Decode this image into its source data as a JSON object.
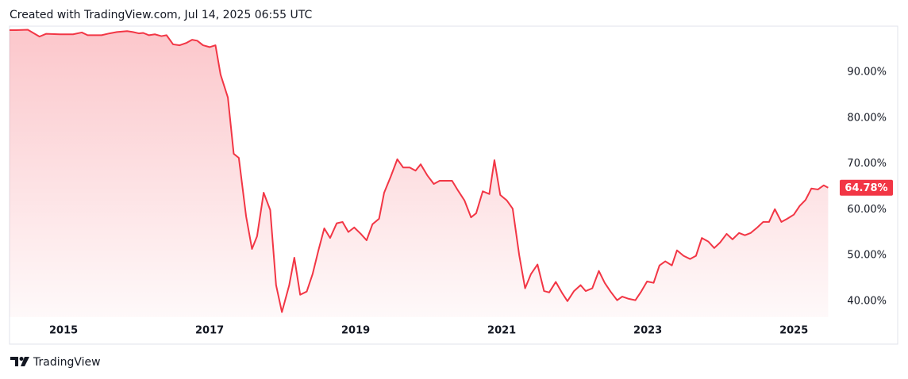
{
  "header": "Created with TradingView.com, Jul 14, 2025 06:55 UTC",
  "footer": "TradingView",
  "chart_data": {
    "type": "area",
    "x": [
      2014.26,
      2014.35,
      2014.51,
      2014.67,
      2014.76,
      2014.95,
      2015.13,
      2015.25,
      2015.33,
      2015.52,
      2015.63,
      2015.73,
      2015.87,
      2015.95,
      2016.03,
      2016.09,
      2016.17,
      2016.25,
      2016.34,
      2016.41,
      2016.5,
      2016.59,
      2016.68,
      2016.76,
      2016.83,
      2016.91,
      2017.0,
      2017.08,
      2017.15,
      2017.25,
      2017.33,
      2017.4,
      2017.5,
      2017.58,
      2017.65,
      2017.74,
      2017.83,
      2017.91,
      2017.99,
      2018.09,
      2018.16,
      2018.24,
      2018.33,
      2018.41,
      2018.49,
      2018.57,
      2018.65,
      2018.74,
      2018.82,
      2018.9,
      2018.98,
      2019.07,
      2019.15,
      2019.23,
      2019.32,
      2019.39,
      2019.48,
      2019.57,
      2019.65,
      2019.74,
      2019.82,
      2019.89,
      2019.98,
      2020.07,
      2020.15,
      2020.24,
      2020.32,
      2020.4,
      2020.49,
      2020.58,
      2020.65,
      2020.74,
      2020.83,
      2020.9,
      2020.98,
      2021.07,
      2021.15,
      2021.24,
      2021.32,
      2021.4,
      2021.49,
      2021.58,
      2021.65,
      2021.74,
      2021.83,
      2021.9,
      2021.99,
      2022.08,
      2022.15,
      2022.24,
      2022.33,
      2022.41,
      2022.49,
      2022.58,
      2022.65,
      2022.74,
      2022.83,
      2022.91,
      2022.99,
      2023.08,
      2023.16,
      2023.24,
      2023.33,
      2023.4,
      2023.49,
      2023.58,
      2023.66,
      2023.74,
      2023.83,
      2023.91,
      2023.99,
      2024.08,
      2024.16,
      2024.25,
      2024.33,
      2024.41,
      2024.5,
      2024.58,
      2024.66,
      2024.74,
      2024.83,
      2024.91,
      2025.0,
      2025.08,
      2025.16,
      2025.24,
      2025.33,
      2025.41,
      2025.47
    ],
    "series": [
      {
        "color": "#f23645",
        "values": [
          99.2,
          99.2,
          99.3,
          97.8,
          98.4,
          98.3,
          98.3,
          98.7,
          98.1,
          98.1,
          98.5,
          98.8,
          99.0,
          98.8,
          98.5,
          98.6,
          98.1,
          98.3,
          97.9,
          98.1,
          96.1,
          95.9,
          96.4,
          97.1,
          96.9,
          95.9,
          95.5,
          95.9,
          89.5,
          84.5,
          72.2,
          71.3,
          58.5,
          51.4,
          54.2,
          63.7,
          59.9,
          43.5,
          37.6,
          43.5,
          49.5,
          41.4,
          42.1,
          45.9,
          51.1,
          55.9,
          53.8,
          57.0,
          57.3,
          55.1,
          56.1,
          54.7,
          53.3,
          56.8,
          58.0,
          63.7,
          67.2,
          71.0,
          69.2,
          69.2,
          68.5,
          69.9,
          67.5,
          65.6,
          66.3,
          66.3,
          66.3,
          64.2,
          62.0,
          58.3,
          59.2,
          64.0,
          63.4,
          70.8,
          63.2,
          62.0,
          60.2,
          50.0,
          42.8,
          45.9,
          48.0,
          42.2,
          41.9,
          44.2,
          41.7,
          40.0,
          42.2,
          43.5,
          42.2,
          42.8,
          46.6,
          44.0,
          42.1,
          40.2,
          41.0,
          40.5,
          40.2,
          42.1,
          44.3,
          44.0,
          47.8,
          48.7,
          47.8,
          51.1,
          49.9,
          49.2,
          49.9,
          53.8,
          53.0,
          51.6,
          52.8,
          54.7,
          53.5,
          54.9,
          54.4,
          54.9,
          56.1,
          57.3,
          57.3,
          60.1,
          57.3,
          58.0,
          58.9,
          60.8,
          62.1,
          64.6,
          64.4,
          65.3,
          64.78
        ]
      }
    ],
    "last_value": {
      "value": 64.78,
      "label": "64.78%"
    },
    "xlim": [
      2014.26,
      2025.52
    ],
    "xticks": [
      2015,
      2017,
      2019,
      2021,
      2023,
      2025
    ],
    "ylim": [
      36.5,
      99.9
    ],
    "yticks": [
      {
        "value": 40,
        "label": "40.00%"
      },
      {
        "value": 50,
        "label": "50.00%"
      },
      {
        "value": 60,
        "label": "60.00%"
      },
      {
        "value": 70,
        "label": "70.00%"
      },
      {
        "value": 80,
        "label": "80.00%"
      },
      {
        "value": 90,
        "label": "90.00%"
      }
    ],
    "grid": false
  }
}
